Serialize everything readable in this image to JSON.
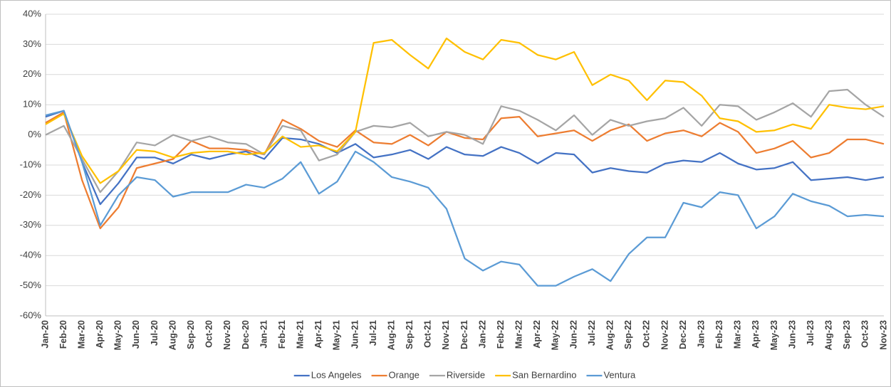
{
  "chart_data": {
    "type": "line",
    "categories": [
      "Jan-20",
      "Feb-20",
      "Mar-20",
      "Apr-20",
      "May-20",
      "Jun-20",
      "Jul-20",
      "Aug-20",
      "Sep-20",
      "Oct-20",
      "Nov-20",
      "Dec-20",
      "Jan-21",
      "Feb-21",
      "Mar-21",
      "Apr-21",
      "May-21",
      "Jun-21",
      "Jul-21",
      "Aug-21",
      "Sep-21",
      "Oct-21",
      "Nov-21",
      "Dec-21",
      "Jan-22",
      "Feb-22",
      "Mar-22",
      "Apr-22",
      "May-22",
      "Jun-22",
      "Jul-22",
      "Aug-22",
      "Sep-22",
      "Oct-22",
      "Nov-22",
      "Dec-22",
      "Jan-23",
      "Feb-23",
      "Mar-23",
      "Apr-23",
      "May-23",
      "Jun-23",
      "Jul-23",
      "Aug-23",
      "Sep-23",
      "Oct-23",
      "Nov-23"
    ],
    "series": [
      {
        "name": "Los Angeles",
        "color": "#4472c4",
        "values": [
          6,
          8,
          -9,
          -23,
          -16,
          -7.5,
          -7.5,
          -9.5,
          -6.5,
          -8,
          -6.5,
          -5.5,
          -8,
          -1,
          -1.5,
          -3,
          -6,
          -3,
          -7.5,
          -6.5,
          -5,
          -8,
          -4,
          -6.5,
          -7,
          -4,
          -6,
          -9.5,
          -6,
          -6.5,
          -12.5,
          -11,
          -12,
          -12.5,
          -9.5,
          -8.5,
          -9,
          -6,
          -9.5,
          -11.5,
          -11,
          -9,
          -15,
          -14.5,
          -14,
          -15,
          -14
        ]
      },
      {
        "name": "Orange",
        "color": "#ed7d31",
        "values": [
          4,
          7.5,
          -15,
          -31,
          -24,
          -11,
          -9.5,
          -8,
          -2,
          -4.5,
          -4.5,
          -5,
          -6.5,
          5,
          2,
          -2,
          -4,
          1.5,
          -2.5,
          -3,
          0,
          -3.5,
          1,
          -1,
          -1.5,
          5.5,
          6,
          -0.5,
          0.5,
          1.5,
          -2,
          1.5,
          3.5,
          -2,
          0.5,
          1.5,
          -0.5,
          4,
          1,
          -6,
          -4.5,
          -2,
          -7.5,
          -6,
          -1.5,
          -1.5,
          -3
        ]
      },
      {
        "name": "Riverside",
        "color": "#a5a5a5",
        "values": [
          0,
          3,
          -8,
          -19,
          -12,
          -2.5,
          -3.5,
          0,
          -2,
          -0.5,
          -2.5,
          -3,
          -6.5,
          3,
          1.5,
          -8.5,
          -6.5,
          1,
          3,
          2.5,
          4,
          -0.5,
          1,
          0,
          -3,
          9.5,
          8,
          5,
          1.5,
          6.5,
          0,
          5,
          3,
          4.5,
          5.5,
          9,
          3,
          10,
          9.5,
          5,
          7.5,
          10.5,
          6,
          14.5,
          15,
          10,
          6
        ]
      },
      {
        "name": "San Bernardino",
        "color": "#ffc000",
        "values": [
          3.5,
          7,
          -7,
          -16,
          -12,
          -5,
          -5.5,
          -7.5,
          -6,
          -5.5,
          -5.5,
          -6.5,
          -6,
          -0.5,
          -4,
          -3.5,
          -5.5,
          1,
          30.5,
          31.5,
          26.5,
          22,
          32,
          27.5,
          25,
          31.5,
          30.5,
          26.5,
          25,
          27.5,
          16.5,
          20,
          18,
          11.5,
          18,
          17.5,
          13,
          5.5,
          4.5,
          1,
          1.5,
          3.5,
          2,
          10,
          9,
          8.5,
          9.5
        ]
      },
      {
        "name": "Ventura",
        "color": "#5b9bd5",
        "values": [
          6.5,
          8,
          -9,
          -30,
          -20,
          -14,
          -15,
          -20.5,
          -19,
          -19,
          -19,
          -16.5,
          -17.5,
          -14.5,
          -9,
          -19.5,
          -15.5,
          -5.5,
          -9,
          -14,
          -15.5,
          -17.5,
          -24.5,
          -41,
          -45,
          -42,
          -43,
          -50,
          -50,
          -47,
          -44.5,
          -48.5,
          -39.5,
          -34,
          -34,
          -22.5,
          -24,
          -19,
          -20,
          -31,
          -27,
          -19.5,
          -22,
          -23.5,
          -27,
          -26.5,
          -27
        ]
      }
    ],
    "ylim": [
      -60,
      40
    ],
    "yticks": [
      {
        "value": -60,
        "label": "-60%"
      },
      {
        "value": -50,
        "label": "-50%"
      },
      {
        "value": -40,
        "label": "-40%"
      },
      {
        "value": -30,
        "label": "-30%"
      },
      {
        "value": -20,
        "label": "-20%"
      },
      {
        "value": -10,
        "label": "-10%"
      },
      {
        "value": 0,
        "label": "0%"
      },
      {
        "value": 10,
        "label": "10%"
      },
      {
        "value": 20,
        "label": "20%"
      },
      {
        "value": 30,
        "label": "30%"
      },
      {
        "value": 40,
        "label": "40%"
      }
    ],
    "grid": true,
    "legend": "bottom"
  }
}
